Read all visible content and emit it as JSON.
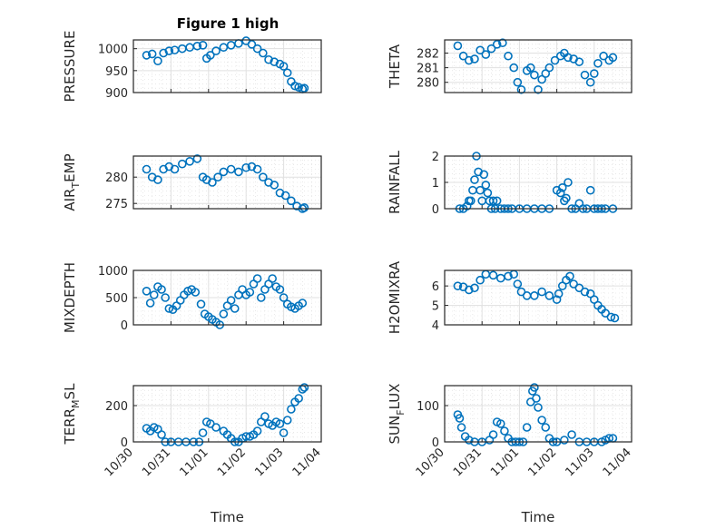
{
  "figure": {
    "title": "Figure 1 high",
    "marker_color": "#0072BD",
    "xlabel": "Time"
  },
  "chart_data": {
    "type": "scatter",
    "title": "Figure 1 high",
    "x_ticks": [
      "10/30",
      "10/31",
      "11/01",
      "11/02",
      "11/03",
      "11/04"
    ],
    "x_range_days": [
      0,
      5
    ],
    "xlabel": "Time",
    "grid": true,
    "minor_grid": true,
    "subplots": [
      {
        "id": "pressure",
        "ylabel": "PRESSURE",
        "ylabel_parts": [
          "PRESSURE"
        ],
        "ylim": [
          900,
          1020
        ],
        "yticks": [
          900,
          950,
          1000
        ],
        "x": [
          0.35,
          0.5,
          0.65,
          0.8,
          0.95,
          1.1,
          1.3,
          1.5,
          1.7,
          1.85,
          1.95,
          2.05,
          2.2,
          2.4,
          2.6,
          2.8,
          3.0,
          3.15,
          3.3,
          3.45,
          3.6,
          3.75,
          3.9,
          4.0,
          4.1,
          4.2,
          4.3,
          4.4,
          4.5,
          4.55
        ],
        "y": [
          985,
          988,
          972,
          990,
          995,
          997,
          1000,
          1003,
          1006,
          1008,
          978,
          985,
          995,
          1003,
          1008,
          1012,
          1018,
          1010,
          1000,
          990,
          975,
          970,
          965,
          960,
          945,
          925,
          915,
          912,
          908,
          910
        ]
      },
      {
        "id": "theta",
        "ylabel": "THETA",
        "ylabel_parts": [
          "THETA"
        ],
        "ylim": [
          279.3,
          282.9
        ],
        "yticks": [
          280,
          281,
          282
        ],
        "x": [
          0.35,
          0.5,
          0.65,
          0.8,
          0.95,
          1.1,
          1.25,
          1.4,
          1.55,
          1.7,
          1.85,
          1.95,
          2.05,
          2.2,
          2.3,
          2.4,
          2.5,
          2.6,
          2.7,
          2.8,
          2.95,
          3.1,
          3.2,
          3.3,
          3.45,
          3.6,
          3.75,
          3.9,
          4.0,
          4.1,
          4.25,
          4.4,
          4.5
        ],
        "y": [
          282.5,
          281.8,
          281.5,
          281.6,
          282.2,
          281.9,
          282.3,
          282.6,
          282.7,
          281.8,
          281.0,
          280.0,
          279.5,
          280.8,
          281.0,
          280.5,
          279.5,
          280.2,
          280.6,
          281.0,
          281.5,
          281.8,
          282.0,
          281.7,
          281.6,
          281.4,
          280.5,
          280.0,
          280.6,
          281.3,
          281.8,
          281.5,
          281.7
        ]
      },
      {
        "id": "air-temp",
        "ylabel": "AIR_TEMP",
        "ylabel_parts": [
          "AIR",
          "T",
          "EMP"
        ],
        "ylim": [
          274,
          284
        ],
        "yticks": [
          275,
          280
        ],
        "x": [
          0.35,
          0.5,
          0.65,
          0.8,
          0.95,
          1.1,
          1.3,
          1.5,
          1.7,
          1.85,
          1.95,
          2.1,
          2.25,
          2.4,
          2.6,
          2.8,
          3.0,
          3.15,
          3.3,
          3.45,
          3.6,
          3.75,
          3.9,
          4.05,
          4.2,
          4.35,
          4.5,
          4.55
        ],
        "y": [
          281.5,
          280,
          279.5,
          281.5,
          282,
          281.5,
          282.5,
          283,
          283.5,
          280,
          279.5,
          279,
          280,
          281,
          281.5,
          281,
          281.8,
          282,
          281.5,
          280,
          279,
          278.5,
          277,
          276.5,
          275.5,
          274.5,
          274,
          274.2
        ]
      },
      {
        "id": "rainfall",
        "ylabel": "RAINFALL",
        "ylabel_parts": [
          "RAINFALL"
        ],
        "ylim": [
          0,
          2
        ],
        "yticks": [
          0,
          1,
          2
        ],
        "x": [
          0.4,
          0.5,
          0.6,
          0.65,
          0.7,
          0.75,
          0.8,
          0.85,
          0.9,
          0.95,
          1.0,
          1.05,
          1.1,
          1.15,
          1.2,
          1.25,
          1.3,
          1.35,
          1.4,
          1.5,
          1.6,
          1.7,
          1.8,
          2.0,
          2.2,
          2.4,
          2.6,
          2.8,
          3.0,
          3.1,
          3.15,
          3.2,
          3.25,
          3.3,
          3.4,
          3.5,
          3.6,
          3.7,
          3.8,
          3.9,
          4.0,
          4.1,
          4.2,
          4.3,
          4.5
        ],
        "y": [
          0,
          0,
          0.1,
          0.3,
          0.3,
          0.7,
          1.1,
          2.0,
          1.4,
          0.7,
          0.3,
          1.3,
          0.9,
          0.6,
          0.3,
          0,
          0.3,
          0,
          0.3,
          0,
          0,
          0,
          0,
          0,
          0,
          0,
          0,
          0,
          0.7,
          0.6,
          0.8,
          0.3,
          0.4,
          1.0,
          0,
          0,
          0.2,
          0,
          0,
          0.7,
          0,
          0,
          0,
          0,
          0
        ]
      },
      {
        "id": "mixdepth",
        "ylabel": "MIXDEPTH",
        "ylabel_parts": [
          "MIXDEPTH"
        ],
        "ylim": [
          0,
          1000
        ],
        "yticks": [
          0,
          500,
          1000
        ],
        "x": [
          0.35,
          0.45,
          0.55,
          0.65,
          0.75,
          0.85,
          0.95,
          1.05,
          1.15,
          1.25,
          1.35,
          1.45,
          1.55,
          1.65,
          1.8,
          1.9,
          2.0,
          2.1,
          2.2,
          2.3,
          2.4,
          2.5,
          2.6,
          2.7,
          2.8,
          2.9,
          3.0,
          3.1,
          3.2,
          3.3,
          3.4,
          3.5,
          3.6,
          3.7,
          3.8,
          3.9,
          4.0,
          4.1,
          4.2,
          4.3,
          4.4,
          4.5
        ],
        "y": [
          620,
          400,
          550,
          700,
          650,
          500,
          300,
          280,
          350,
          450,
          550,
          620,
          650,
          600,
          380,
          200,
          150,
          100,
          50,
          0,
          200,
          350,
          450,
          300,
          550,
          650,
          550,
          600,
          750,
          850,
          500,
          650,
          750,
          850,
          700,
          650,
          500,
          380,
          330,
          300,
          350,
          400
        ]
      },
      {
        "id": "h2omixra",
        "ylabel": "H2OMIXRA",
        "ylabel_parts": [
          "H2OMIXRA"
        ],
        "ylim": [
          4,
          6.8
        ],
        "yticks": [
          4,
          5,
          6
        ],
        "x": [
          0.35,
          0.5,
          0.65,
          0.8,
          0.95,
          1.1,
          1.3,
          1.5,
          1.7,
          1.85,
          1.95,
          2.05,
          2.2,
          2.4,
          2.6,
          2.8,
          3.0,
          3.05,
          3.15,
          3.25,
          3.35,
          3.45,
          3.6,
          3.75,
          3.9,
          4.0,
          4.1,
          4.2,
          4.3,
          4.45,
          4.55
        ],
        "y": [
          6.0,
          5.95,
          5.8,
          5.9,
          6.3,
          6.6,
          6.55,
          6.4,
          6.5,
          6.6,
          6.1,
          5.7,
          5.5,
          5.5,
          5.7,
          5.5,
          5.3,
          5.6,
          6.0,
          6.3,
          6.5,
          6.1,
          5.9,
          5.7,
          5.6,
          5.3,
          5.0,
          4.8,
          4.6,
          4.4,
          4.35
        ]
      },
      {
        "id": "terr-msl",
        "ylabel": "TERR_MSL",
        "ylabel_parts": [
          "TERR",
          "M",
          "SL"
        ],
        "ylim": [
          0,
          310
        ],
        "yticks": [
          0,
          200
        ],
        "x": [
          0.35,
          0.45,
          0.55,
          0.65,
          0.75,
          0.85,
          1.0,
          1.2,
          1.4,
          1.6,
          1.75,
          1.85,
          1.95,
          2.05,
          2.2,
          2.4,
          2.5,
          2.6,
          2.7,
          2.8,
          2.9,
          3.0,
          3.1,
          3.2,
          3.3,
          3.4,
          3.5,
          3.6,
          3.7,
          3.8,
          3.9,
          4.0,
          4.1,
          4.2,
          4.3,
          4.4,
          4.5,
          4.55
        ],
        "y": [
          75,
          60,
          80,
          70,
          40,
          0,
          0,
          0,
          0,
          0,
          0,
          50,
          110,
          100,
          80,
          60,
          40,
          20,
          0,
          0,
          20,
          30,
          30,
          40,
          60,
          110,
          140,
          100,
          90,
          110,
          100,
          50,
          120,
          180,
          220,
          240,
          290,
          300
        ]
      },
      {
        "id": "sun-flux",
        "ylabel": "SUN_FLUX",
        "ylabel_parts": [
          "SUN",
          "F",
          "LUX"
        ],
        "ylim": [
          0,
          155
        ],
        "yticks": [
          0,
          100
        ],
        "x": [
          0.35,
          0.4,
          0.45,
          0.55,
          0.65,
          0.8,
          1.0,
          1.2,
          1.3,
          1.4,
          1.5,
          1.6,
          1.7,
          1.8,
          1.9,
          2.0,
          2.1,
          2.2,
          2.3,
          2.35,
          2.4,
          2.45,
          2.5,
          2.6,
          2.7,
          2.8,
          2.9,
          3.0,
          3.2,
          3.4,
          3.6,
          3.8,
          4.0,
          4.2,
          4.3,
          4.4,
          4.5
        ],
        "y": [
          75,
          65,
          40,
          15,
          5,
          0,
          0,
          5,
          20,
          55,
          50,
          30,
          10,
          0,
          0,
          0,
          0,
          40,
          110,
          140,
          150,
          120,
          95,
          60,
          40,
          10,
          0,
          0,
          5,
          20,
          0,
          0,
          0,
          0,
          5,
          10,
          10
        ]
      }
    ]
  }
}
